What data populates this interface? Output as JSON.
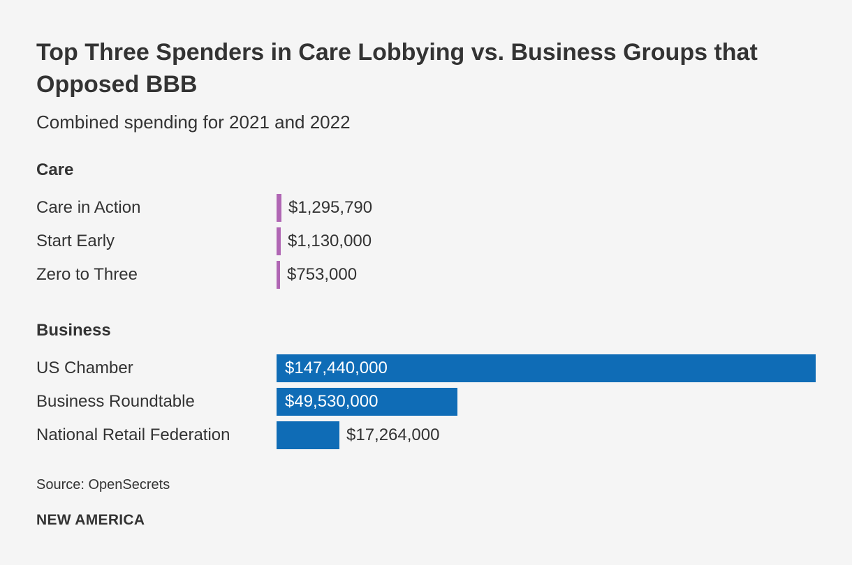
{
  "chart_data": {
    "type": "bar",
    "orientation": "horizontal",
    "title": "Top Three Spenders in Care Lobbying vs. Business Groups that Opposed BBB",
    "subtitle": "Combined spending for 2021 and 2022",
    "groups": [
      {
        "name": "Care",
        "color": "#b066b4",
        "items": [
          {
            "label": "Care in Action",
            "value": 1295790,
            "value_label": "$1,295,790"
          },
          {
            "label": "Start Early",
            "value": 1130000,
            "value_label": "$1,130,000"
          },
          {
            "label": "Zero to Three",
            "value": 753000,
            "value_label": "$753,000"
          }
        ]
      },
      {
        "name": "Business",
        "color": "#0f6cb6",
        "items": [
          {
            "label": "US Chamber",
            "value": 147440000,
            "value_label": "$147,440,000"
          },
          {
            "label": "Business Roundtable",
            "value": 49530000,
            "value_label": "$49,530,000"
          },
          {
            "label": "National Retail Federation",
            "value": 17264000,
            "value_label": "$17,264,000"
          }
        ]
      }
    ],
    "xlim": [
      0,
      147440000
    ],
    "grid": false
  },
  "footer": {
    "source": "Source: OpenSecrets",
    "brand": "NEW AMERICA"
  }
}
